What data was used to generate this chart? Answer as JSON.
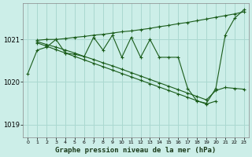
{
  "title": "Graphe pression niveau de la mer (hPa)",
  "bg_color": "#cceee8",
  "grid_color": "#aad8d0",
  "line_color": "#1a5c1a",
  "xlim": [
    -0.5,
    23.5
  ],
  "ylim": [
    1018.7,
    1021.85
  ],
  "yticks": [
    1019,
    1020,
    1021
  ],
  "xticks": [
    0,
    1,
    2,
    3,
    4,
    5,
    6,
    7,
    8,
    9,
    10,
    11,
    12,
    13,
    14,
    15,
    16,
    17,
    18,
    19,
    20,
    21,
    22,
    23
  ],
  "series": [
    {
      "x": [
        1,
        2,
        3,
        4,
        5,
        6,
        7,
        8,
        9,
        10,
        11,
        12,
        13,
        14,
        15,
        16,
        17,
        18,
        19,
        20,
        21,
        22,
        23
      ],
      "y": [
        1020.98,
        1021.0,
        1021.0,
        1021.02,
        1021.05,
        1021.07,
        1021.1,
        1021.12,
        1021.15,
        1021.18,
        1021.2,
        1021.23,
        1021.26,
        1021.3,
        1021.33,
        1021.37,
        1021.4,
        1021.44,
        1021.48,
        1021.52,
        1021.56,
        1021.6,
        1021.65
      ]
    },
    {
      "x": [
        1,
        2,
        3,
        4,
        5,
        6,
        7,
        8,
        9,
        10,
        11,
        12,
        13,
        14,
        15,
        16,
        17,
        18,
        19,
        20,
        21,
        22,
        23
      ],
      "y": [
        1020.95,
        1020.88,
        1020.82,
        1020.75,
        1020.68,
        1020.6,
        1020.53,
        1020.45,
        1020.38,
        1020.3,
        1020.22,
        1020.14,
        1020.06,
        1019.98,
        1019.9,
        1019.82,
        1019.74,
        1019.66,
        1019.58,
        1019.8,
        1019.87,
        1019.85,
        1019.83
      ]
    },
    {
      "x": [
        1,
        2,
        3,
        4,
        5,
        6,
        7,
        8,
        9,
        10,
        11,
        12,
        13,
        14,
        15,
        16,
        17,
        18,
        19,
        20
      ],
      "y": [
        1020.92,
        1020.84,
        1020.76,
        1020.68,
        1020.6,
        1020.52,
        1020.44,
        1020.36,
        1020.28,
        1020.2,
        1020.12,
        1020.04,
        1019.96,
        1019.88,
        1019.8,
        1019.72,
        1019.64,
        1019.56,
        1019.48,
        1019.55
      ]
    },
    {
      "x": [
        0,
        1,
        2,
        3,
        4,
        5,
        6,
        7,
        8,
        9,
        10,
        11,
        12,
        13,
        14,
        15,
        16,
        17,
        18,
        19,
        20,
        21,
        22,
        23
      ],
      "y": [
        1020.2,
        1020.75,
        1020.82,
        1021.0,
        1020.68,
        1020.65,
        1020.6,
        1021.05,
        1020.75,
        1021.1,
        1020.58,
        1021.05,
        1020.58,
        1021.0,
        1020.58,
        1020.58,
        1020.58,
        1019.85,
        1019.55,
        1019.5,
        1019.85,
        1021.1,
        1021.5,
        1021.7
      ]
    }
  ]
}
